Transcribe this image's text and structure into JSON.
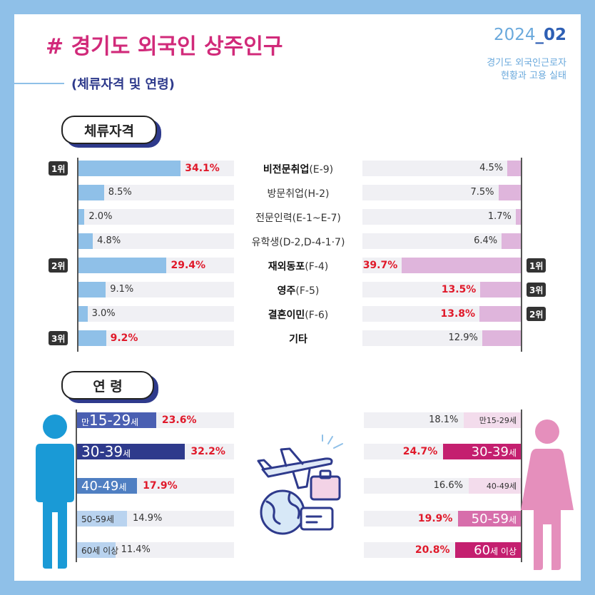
{
  "header": {
    "title": "# 경기도 외국인 상주인구",
    "subtitle": "(체류자격 및 연령)",
    "year": "2024",
    "issue": "_02",
    "source_line1": "경기도 외국인근로자",
    "source_line2": "현황과 고용 실태"
  },
  "sections": {
    "visa": "체류자격",
    "age": "연 령"
  },
  "colors": {
    "accent": "#d12a7a",
    "navy": "#2e3a8c",
    "sky": "#8fc0e8",
    "pink_light": "#dfb5dc",
    "highlight": "#e0192a",
    "male": "#1a9ad6",
    "female": "#e58fbc"
  },
  "icons": [
    "male-figure-icon",
    "female-figure-icon",
    "airplane-globe-icon"
  ],
  "chart_data": [
    {
      "type": "bar",
      "title": "체류자격",
      "categories": [
        "비전문취업(E-9)",
        "방문취업(H-2)",
        "전문인력(E-1~E-7)",
        "유학생(D-2,D-4-1·7)",
        "재외동포(F-4)",
        "영주(F-5)",
        "결혼이민(F-6)",
        "기타"
      ],
      "categories_bold": [
        "비전문취업",
        "",
        "",
        "",
        "재외동포",
        "영주",
        "결혼이민",
        "기타"
      ],
      "categories_rest": [
        "(E-9)",
        "방문취업(H-2)",
        "전문인력(E-1~E-7)",
        "유학생(D-2,D-4-1·7)",
        "(F-4)",
        "(F-5)",
        "(F-6)",
        ""
      ],
      "series": [
        {
          "values": [
            34.1,
            8.5,
            2.0,
            4.8,
            29.4,
            9.1,
            3.0,
            9.2
          ],
          "labels": [
            "34.1%",
            "8.5%",
            "2.0%",
            "4.8%",
            "29.4%",
            "9.1%",
            "3.0%",
            "9.2%"
          ],
          "ranks": [
            "1위",
            "",
            "",
            "",
            "2위",
            "",
            "",
            "3위"
          ]
        },
        {
          "values": [
            4.5,
            7.5,
            1.7,
            6.4,
            39.7,
            13.5,
            13.8,
            12.9
          ],
          "labels": [
            "4.5%",
            "7.5%",
            "1.7%",
            "6.4%",
            "39.7%",
            "13.5%",
            "13.8%",
            "12.9%"
          ],
          "ranks": [
            "",
            "",
            "",
            "",
            "1위",
            "3위",
            "2위",
            ""
          ]
        }
      ]
    },
    {
      "type": "bar",
      "title": "연 령",
      "series": [
        {
          "categories": [
            "만15-29세",
            "30-39세",
            "40-49세",
            "50-59세",
            "60세 이상"
          ],
          "cat_big": [
            "15-29",
            "30-39",
            "40-49",
            "",
            ""
          ],
          "cat_prefix": [
            "만",
            "",
            "",
            "",
            ""
          ],
          "cat_suffix": [
            "세",
            "세",
            "세",
            "50-59세",
            "60세 이상"
          ],
          "values": [
            23.6,
            32.2,
            17.9,
            14.9,
            11.4
          ],
          "labels": [
            "23.6%",
            "32.2%",
            "17.9%",
            "14.9%",
            "11.4%"
          ]
        },
        {
          "categories": [
            "만15-29세",
            "30-39세",
            "40-49세",
            "50-59세",
            "60세 이상"
          ],
          "cat_big": [
            "",
            "30-39",
            "",
            "50-59",
            "60"
          ],
          "cat_suffix": [
            "만15-29세",
            "세",
            "40-49세",
            "세",
            "세 이상"
          ],
          "values": [
            18.1,
            24.7,
            16.6,
            19.9,
            20.8
          ],
          "labels": [
            "18.1%",
            "24.7%",
            "16.6%",
            "19.9%",
            "20.8%"
          ]
        }
      ]
    }
  ]
}
